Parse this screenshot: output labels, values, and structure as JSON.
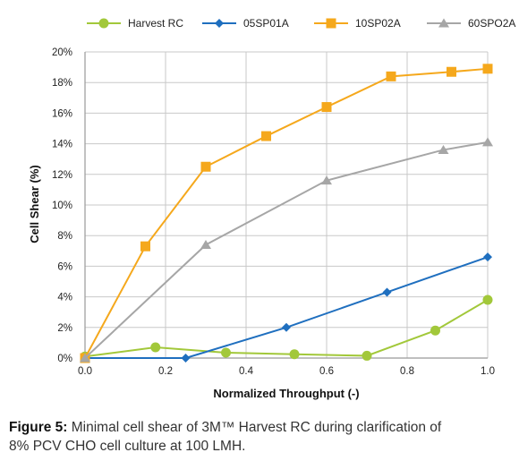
{
  "chart_data": {
    "type": "line",
    "title": "",
    "xlabel": "Normalized Throughput (-)",
    "ylabel": "Cell Shear (%)",
    "xlim": [
      0,
      1
    ],
    "ylim": [
      0,
      20
    ],
    "x_ticks": [
      "0.0",
      "0.2",
      "0.4",
      "0.6",
      "0.8",
      "1.0"
    ],
    "y_ticks": [
      "0%",
      "2%",
      "4%",
      "6%",
      "8%",
      "10%",
      "12%",
      "14%",
      "16%",
      "18%",
      "20%"
    ],
    "grid": true,
    "legend_position": "top",
    "series": [
      {
        "name": "Harvest RC",
        "color": "#a2c83a",
        "marker": "circle",
        "x": [
          0.0,
          0.175,
          0.35,
          0.52,
          0.7,
          0.87,
          1.0
        ],
        "y": [
          0.1,
          0.7,
          0.35,
          0.25,
          0.15,
          1.8,
          3.8
        ]
      },
      {
        "name": "05SP01A",
        "color": "#1f6fbf",
        "marker": "diamond",
        "x": [
          0.0,
          0.25,
          0.5,
          0.75,
          1.0
        ],
        "y": [
          0.0,
          0.0,
          2.0,
          4.3,
          6.6
        ]
      },
      {
        "name": "10SP02A",
        "color": "#f5a81c",
        "marker": "square",
        "x": [
          0.0,
          0.15,
          0.3,
          0.45,
          0.6,
          0.76,
          0.91,
          1.0
        ],
        "y": [
          0.0,
          7.3,
          12.5,
          14.5,
          16.4,
          18.4,
          18.7,
          18.9
        ]
      },
      {
        "name": "60SPO2A",
        "color": "#a6a6a6",
        "marker": "triangle",
        "x": [
          0.0,
          0.3,
          0.6,
          0.89,
          1.0
        ],
        "y": [
          0.0,
          7.4,
          11.6,
          13.6,
          14.1
        ]
      }
    ]
  },
  "caption": {
    "label": "Figure 5:",
    "line1": " Minimal cell shear of 3M™ Harvest RC during clarification of",
    "line2": "8% PCV CHO cell culture at 100 LMH."
  }
}
